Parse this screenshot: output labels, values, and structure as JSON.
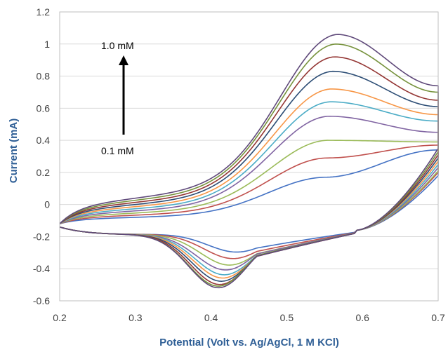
{
  "chart_data": {
    "type": "line",
    "title": "",
    "xlabel": "Potential (Volt vs. Ag/AgCl, 1 M KCl)",
    "ylabel": "Current (mA)",
    "xlim": [
      0.2,
      0.7
    ],
    "ylim": [
      -0.6,
      1.2
    ],
    "x_ticks": [
      "0.2",
      "0.3",
      "0.4",
      "0.5",
      "0.6",
      "0.7"
    ],
    "y_ticks": [
      "-0.6",
      "-0.4",
      "-0.2",
      "0",
      "0.2",
      "0.4",
      "0.6",
      "0.8",
      "1",
      "1.2"
    ],
    "grid": "horizontal",
    "annotations": {
      "top_label": "1.0 mM",
      "bottom_label": "0.1 mM",
      "arrow_direction": "up"
    },
    "series": [
      {
        "color": "#4472c4",
        "anodic_peak": {
          "x": 0.55,
          "y": 0.17
        },
        "cathodic_peak": {
          "x": 0.435,
          "y": -0.3
        },
        "end_upper": 0.22,
        "end_lower": 0.18
      },
      {
        "color": "#c0504d",
        "anodic_peak": {
          "x": 0.552,
          "y": 0.29
        },
        "cathodic_peak": {
          "x": 0.43,
          "y": -0.34
        },
        "end_upper": 0.25,
        "end_lower": 0.2
      },
      {
        "color": "#9bbb59",
        "anodic_peak": {
          "x": 0.553,
          "y": 0.4
        },
        "cathodic_peak": {
          "x": 0.425,
          "y": -0.38
        },
        "end_upper": 0.27,
        "end_lower": 0.21
      },
      {
        "color": "#8064a2",
        "anodic_peak": {
          "x": 0.555,
          "y": 0.55
        },
        "cathodic_peak": {
          "x": 0.42,
          "y": -0.41
        },
        "end_upper": 0.33,
        "end_lower": 0.23
      },
      {
        "color": "#4bacc6",
        "anodic_peak": {
          "x": 0.557,
          "y": 0.64
        },
        "cathodic_peak": {
          "x": 0.418,
          "y": -0.44
        },
        "end_upper": 0.4,
        "end_lower": 0.25
      },
      {
        "color": "#f79646",
        "anodic_peak": {
          "x": 0.558,
          "y": 0.72
        },
        "cathodic_peak": {
          "x": 0.416,
          "y": -0.46
        },
        "end_upper": 0.44,
        "end_lower": 0.27
      },
      {
        "color": "#2c4d75",
        "anodic_peak": {
          "x": 0.56,
          "y": 0.83
        },
        "cathodic_peak": {
          "x": 0.414,
          "y": -0.48
        },
        "end_upper": 0.49,
        "end_lower": 0.29
      },
      {
        "color": "#943634",
        "anodic_peak": {
          "x": 0.562,
          "y": 0.92
        },
        "cathodic_peak": {
          "x": 0.412,
          "y": -0.5
        },
        "end_upper": 0.53,
        "end_lower": 0.31
      },
      {
        "color": "#76923c",
        "anodic_peak": {
          "x": 0.564,
          "y": 1.0
        },
        "cathodic_peak": {
          "x": 0.41,
          "y": -0.51
        },
        "end_upper": 0.58,
        "end_lower": 0.33
      },
      {
        "color": "#5f497a",
        "anodic_peak": {
          "x": 0.566,
          "y": 1.06
        },
        "cathodic_peak": {
          "x": 0.41,
          "y": -0.52
        },
        "end_upper": 0.62,
        "end_lower": 0.35
      }
    ]
  }
}
